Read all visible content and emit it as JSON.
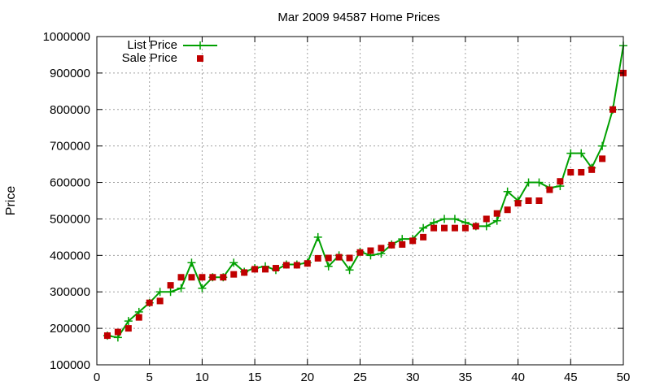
{
  "chart_data": {
    "type": "line",
    "title": "Mar 2009 94587 Home Prices",
    "xlabel": "",
    "ylabel": "Price",
    "xlim": [
      0,
      50
    ],
    "ylim": [
      100000,
      1000000
    ],
    "x_ticks": [
      0,
      5,
      10,
      15,
      20,
      25,
      30,
      35,
      40,
      45,
      50
    ],
    "y_ticks": [
      100000,
      200000,
      300000,
      400000,
      500000,
      600000,
      700000,
      800000,
      900000,
      1000000
    ],
    "x_tick_labels": [
      "0",
      "5",
      "10",
      "15",
      "20",
      "25",
      "30",
      "35",
      "40",
      "45",
      "50"
    ],
    "y_tick_labels": [
      "100000",
      "200000",
      "300000",
      "400000",
      "500000",
      "600000",
      "700000",
      "800000",
      "900000",
      "1000000"
    ],
    "grid": true,
    "legend_position": "top-left",
    "x": [
      1,
      2,
      3,
      4,
      5,
      6,
      7,
      8,
      9,
      10,
      11,
      12,
      13,
      14,
      15,
      16,
      17,
      18,
      19,
      20,
      21,
      22,
      23,
      24,
      25,
      26,
      27,
      28,
      29,
      30,
      31,
      32,
      33,
      34,
      35,
      36,
      37,
      38,
      39,
      40,
      41,
      42,
      43,
      44,
      45,
      46,
      47,
      48,
      49,
      50
    ],
    "series": [
      {
        "name": "List Price",
        "style": "linespoints",
        "marker": "plus",
        "color": "#00a000",
        "values": [
          180000,
          175000,
          220000,
          245000,
          270000,
          300000,
          300000,
          310000,
          380000,
          310000,
          340000,
          340000,
          380000,
          355000,
          365000,
          370000,
          360000,
          375000,
          375000,
          380000,
          450000,
          370000,
          400000,
          360000,
          410000,
          400000,
          405000,
          430000,
          445000,
          445000,
          475000,
          490000,
          500000,
          500000,
          490000,
          480000,
          480000,
          495000,
          575000,
          550000,
          600000,
          600000,
          585000,
          590000,
          680000,
          680000,
          640000,
          700000,
          800000,
          975000
        ]
      },
      {
        "name": "Sale Price",
        "style": "points",
        "marker": "square",
        "color": "#c00000",
        "values": [
          180000,
          190000,
          200000,
          230000,
          270000,
          275000,
          318000,
          340000,
          340000,
          340000,
          340000,
          340000,
          348000,
          353000,
          362000,
          362000,
          365000,
          373000,
          373000,
          378000,
          392000,
          393000,
          395000,
          393000,
          408000,
          413000,
          420000,
          428000,
          430000,
          440000,
          450000,
          475000,
          475000,
          475000,
          475000,
          480000,
          500000,
          515000,
          525000,
          543000,
          550000,
          550000,
          580000,
          603000,
          628000,
          628000,
          635000,
          665000,
          800000,
          900000
        ]
      }
    ]
  }
}
